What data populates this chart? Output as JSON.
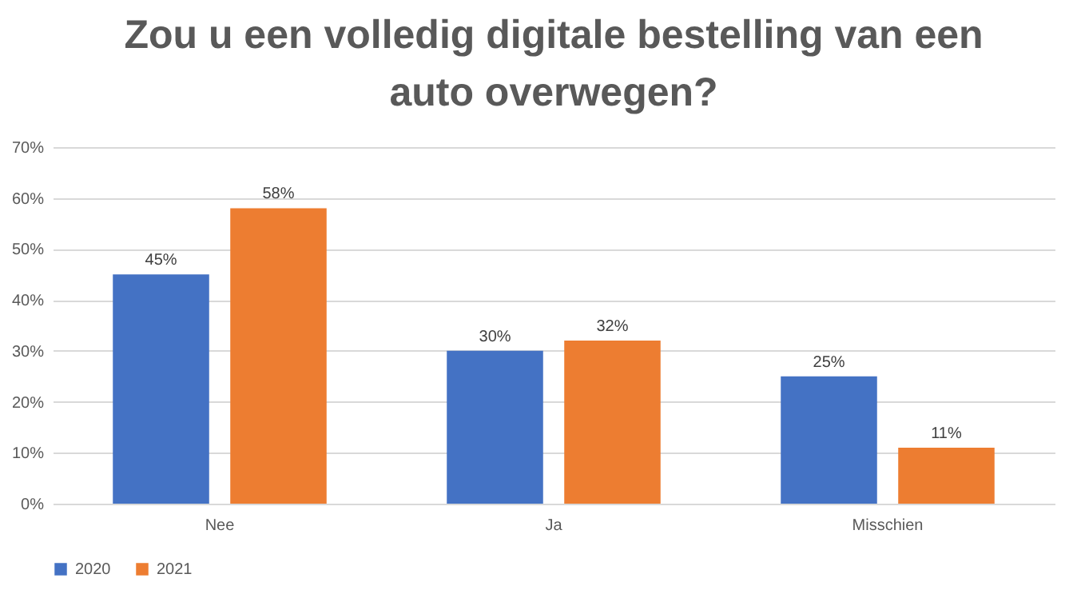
{
  "chart_data": {
    "type": "bar",
    "title": "Zou u een volledig digitale bestelling van een auto overwegen?",
    "categories": [
      "Nee",
      "Ja",
      "Misschien"
    ],
    "series": [
      {
        "name": "2020",
        "color": "#4472c4",
        "values": [
          45,
          30,
          25
        ],
        "value_labels": [
          "45%",
          "30%",
          "25%"
        ]
      },
      {
        "name": "2021",
        "color": "#ed7d31",
        "values": [
          58,
          32,
          11
        ],
        "value_labels": [
          "58%",
          "32%",
          "11%"
        ]
      }
    ],
    "ylim": [
      0,
      70
    ],
    "yticks": [
      {
        "value": 0,
        "label": "0%"
      },
      {
        "value": 10,
        "label": "10%"
      },
      {
        "value": 20,
        "label": "20%"
      },
      {
        "value": 30,
        "label": "30%"
      },
      {
        "value": 40,
        "label": "40%"
      },
      {
        "value": 50,
        "label": "50%"
      },
      {
        "value": 60,
        "label": "60%"
      },
      {
        "value": 70,
        "label": "70%"
      }
    ],
    "grid": "y",
    "legend": "bottom"
  }
}
